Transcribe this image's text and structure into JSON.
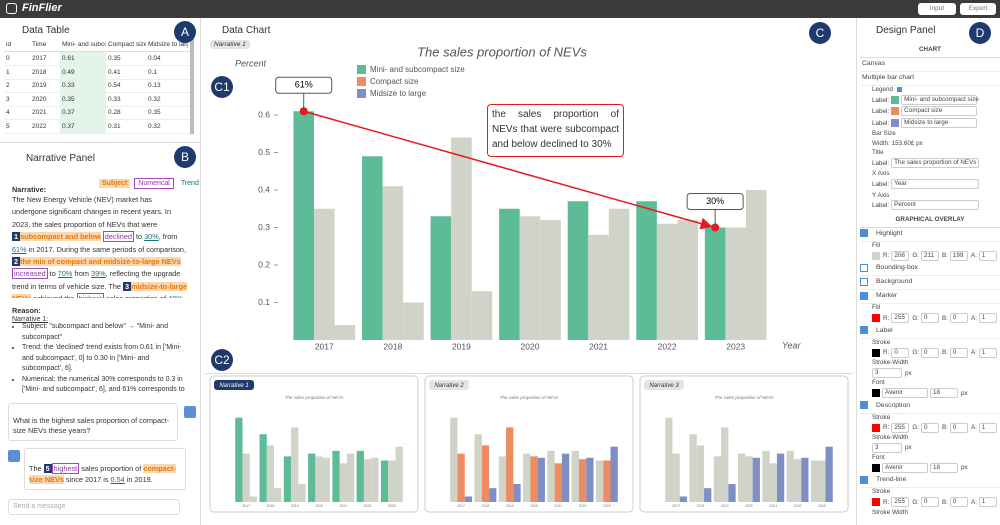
{
  "top_bar": {
    "logo": "FinFlier",
    "buttons": [
      "Input",
      "Export"
    ]
  },
  "callouts": [
    "A",
    "B",
    "C",
    "D",
    "C1",
    "C2"
  ],
  "data_table": {
    "title": "Data Table",
    "columns": [
      "id",
      "Time",
      "Mini- and subcompact size",
      "Compact size",
      "Midsize to large"
    ],
    "rows": [
      [
        "0",
        "2017",
        "0.61",
        "0.35",
        "0.04"
      ],
      [
        "1",
        "2018",
        "0.49",
        "0.41",
        "0.1"
      ],
      [
        "2",
        "2019",
        "0.33",
        "0.54",
        "0.13"
      ],
      [
        "3",
        "2020",
        "0.35",
        "0.33",
        "0.32"
      ],
      [
        "4",
        "2021",
        "0.37",
        "0.28",
        "0.35"
      ],
      [
        "5",
        "2022",
        "0.37",
        "0.31",
        "0.32"
      ]
    ]
  },
  "narrative_panel": {
    "title": "Narrative Panel",
    "tags": [
      {
        "text": "Subject",
        "style": "orange"
      },
      {
        "text": "Numerical",
        "style": "purple"
      },
      {
        "text": "Trend",
        "style": "teal"
      }
    ],
    "narrative_heading": "Narrative:",
    "narrative": [
      {
        "text": "The New Energy Vehicle (NEV) market has undergone significant changes in recent years. In 2023, the sales proportion of NEVs that were ",
        "style": "plain"
      },
      {
        "text": "1",
        "style": "badge"
      },
      {
        "text": "subcompact and below",
        "style": "orange"
      },
      {
        "text": " ",
        "style": "plain"
      },
      {
        "text": "declined",
        "style": "purple"
      },
      {
        "text": " to ",
        "style": "plain"
      },
      {
        "text": "30%",
        "style": "teal"
      },
      {
        "text": ", from ",
        "style": "plain"
      },
      {
        "text": "61%",
        "style": "teal"
      },
      {
        "text": " in 2017. During the same periods of comparison, ",
        "style": "plain"
      },
      {
        "text": "2",
        "style": "badge"
      },
      {
        "text": "the mix of compact and midsize-to-large NEVs",
        "style": "orange"
      },
      {
        "text": " ",
        "style": "plain"
      },
      {
        "text": "increased",
        "style": "purple"
      },
      {
        "text": " to ",
        "style": "plain"
      },
      {
        "text": "70%",
        "style": "teal"
      },
      {
        "text": " from ",
        "style": "plain"
      },
      {
        "text": "39%",
        "style": "teal"
      },
      {
        "text": ", reflecting the upgrade trend in terms of vehicle size. The ",
        "style": "plain"
      },
      {
        "text": "3",
        "style": "badge"
      },
      {
        "text": "midsize-to-large NEVs",
        "style": "orange"
      },
      {
        "text": " achieved the ",
        "style": "plain"
      },
      {
        "text": "highest",
        "style": "purple"
      },
      {
        "text": " sales proportion of ",
        "style": "plain"
      },
      {
        "text": "40%",
        "style": "teal"
      },
      {
        "text": " in 2023, indicating a significant shift in consumer preference towards to larger, more feature-rich",
        "style": "plain"
      }
    ],
    "reason_heading": "Reason:",
    "reason_subheading": "Narrative 1:",
    "reasons": [
      "Subject: \"subcompact and below\" → \"Mini- and subcompact\"",
      "Trend: the 'declined' trend exists from 0.61 in ['Mini- and subcompact', 0] to 0.30 in ['Mini- and subcompact', 6].",
      "Numerical: the numerical 30% corresponds to 0.3 in ['Mini- and subcompact', 6], and 61% corresponds to 0.61 in ['Mini- and subcompact', 0]"
    ],
    "question": "What is the highest sales proportion of compact-size NEVs these years?",
    "answer": [
      {
        "text": "The ",
        "style": "plain"
      },
      {
        "text": "5",
        "style": "badge"
      },
      {
        "text": "highest",
        "style": "purple"
      },
      {
        "text": " sales proportion of ",
        "style": "plain"
      },
      {
        "text": "compact-size NEVs",
        "style": "orange"
      },
      {
        "text": " since 2017 is ",
        "style": "plain"
      },
      {
        "text": "0.54",
        "style": "teal"
      },
      {
        "text": " in 2019.",
        "style": "plain"
      }
    ],
    "input_placeholder": "Send a message"
  },
  "chart_panel": {
    "title": "Data Chart",
    "narrative_tag": "Narrative 1",
    "thumbnails": [
      {
        "label": "Narrative 1",
        "highlight": [
          0
        ]
      },
      {
        "label": "Narrative 2",
        "highlight": [
          1,
          2
        ]
      },
      {
        "label": "Narrative 3",
        "highlight": [
          2
        ]
      }
    ]
  },
  "chart_data": {
    "type": "bar",
    "title": "The sales proportion of NEVs",
    "x_label": "Year",
    "y_label": "Percent",
    "categories": [
      "2017",
      "2018",
      "2019",
      "2020",
      "2021",
      "2022",
      "2023"
    ],
    "series": [
      {
        "name": "Mini- and subcompact size",
        "color": "#5dbb97",
        "values": [
          0.61,
          0.49,
          0.33,
          0.35,
          0.37,
          0.37,
          0.3
        ]
      },
      {
        "name": "Compact size",
        "color": "#ef8b60",
        "values": [
          0.35,
          0.41,
          0.54,
          0.33,
          0.28,
          0.31,
          0.3
        ]
      },
      {
        "name": "Midsize to large",
        "color": "#7f8fc6",
        "values": [
          0.04,
          0.1,
          0.13,
          0.32,
          0.35,
          0.32,
          0.4
        ]
      }
    ],
    "ylim": [
      0,
      0.68
    ],
    "yticks": [
      0.1,
      0.2,
      0.3,
      0.4,
      0.5,
      0.6
    ],
    "highlight": {
      "series": [
        0
      ],
      "fill": "#d0d3c7"
    },
    "annotations": {
      "labels": [
        {
          "text": "61%",
          "series": 0,
          "index": 0
        },
        {
          "text": "30%",
          "series": 0,
          "index": 6
        }
      ],
      "description": "the sales proportion of NEVs that were subcompact and below declined to 30%",
      "trend_line": {
        "from": [
          0,
          0
        ],
        "to": [
          0,
          6
        ],
        "color": "#e8191e"
      }
    }
  },
  "design_panel": {
    "title": "Design Panel",
    "channel_labels": [
      "R:",
      "G:",
      "B:",
      "A:"
    ],
    "rows": [
      {
        "kind": "section",
        "text": "CHART"
      },
      {
        "kind": "item",
        "text": "Canvas"
      },
      {
        "kind": "item",
        "text": "Multiple bar chart"
      },
      {
        "kind": "label",
        "text": "Legend",
        "checked": true
      },
      {
        "kind": "input",
        "label": "Label:",
        "color": "#5dbb97",
        "value": "Mini- and subcompact size"
      },
      {
        "kind": "input",
        "label": "Label:",
        "color": "#ef8b60",
        "value": "Compact size"
      },
      {
        "kind": "input",
        "label": "Label:",
        "color": "#7f8fc6",
        "value": "Midsize to large"
      },
      {
        "kind": "label",
        "text": "Bar Size"
      },
      {
        "kind": "label",
        "text": "Width: 153.60£ px"
      },
      {
        "kind": "label",
        "text": "Title"
      },
      {
        "kind": "input",
        "label": "Label:",
        "value": "The sales proportion of NEVs"
      },
      {
        "kind": "label",
        "text": "X Axis"
      },
      {
        "kind": "input",
        "label": "Label:",
        "value": "Year"
      },
      {
        "kind": "label",
        "text": "Y Axis"
      },
      {
        "kind": "input",
        "label": "Label:",
        "value": "Percent"
      },
      {
        "kind": "section",
        "text": "GRAPHICAL OVERLAY"
      },
      {
        "kind": "item",
        "text": "Highlight",
        "checked": true
      },
      {
        "kind": "label",
        "text": "Fill"
      },
      {
        "kind": "rgba",
        "color": "#d0d3c7",
        "values": [
          "208",
          "211",
          "199",
          "1"
        ]
      },
      {
        "kind": "item",
        "text": "Bounding-box",
        "checked": false
      },
      {
        "kind": "item",
        "text": "Background",
        "checked": false
      },
      {
        "kind": "item",
        "text": "Marker",
        "checked": true
      },
      {
        "kind": "label",
        "text": "Fill"
      },
      {
        "kind": "rgba",
        "color": "#ff0000",
        "values": [
          "255",
          "0",
          "0",
          "1"
        ]
      },
      {
        "kind": "item",
        "text": "Label",
        "checked": true
      },
      {
        "kind": "label",
        "text": "Stroke"
      },
      {
        "kind": "rgba",
        "color": "#000000",
        "values": [
          "0",
          "0",
          "0",
          "1"
        ]
      },
      {
        "kind": "label",
        "text": "Stroke-Width"
      },
      {
        "kind": "px",
        "value": "3",
        "unit": "px"
      },
      {
        "kind": "label",
        "text": "Font"
      },
      {
        "kind": "font",
        "color": "#000000",
        "font": "Avenir",
        "size": "18",
        "unit": "px"
      },
      {
        "kind": "item",
        "text": "Description",
        "checked": true
      },
      {
        "kind": "label",
        "text": "Stroke"
      },
      {
        "kind": "rgba",
        "color": "#ff0000",
        "values": [
          "255",
          "0",
          "0",
          "1"
        ]
      },
      {
        "kind": "label",
        "text": "Stroke-Width"
      },
      {
        "kind": "px",
        "value": "3",
        "unit": "px"
      },
      {
        "kind": "label",
        "text": "Font"
      },
      {
        "kind": "font",
        "color": "#000000",
        "font": "Avenir",
        "size": "18",
        "unit": "px"
      },
      {
        "kind": "item",
        "text": "Trend-line",
        "checked": true
      },
      {
        "kind": "label",
        "text": "Stroke"
      },
      {
        "kind": "rgba",
        "color": "#ff0000",
        "values": [
          "255",
          "0",
          "0",
          "1"
        ]
      },
      {
        "kind": "label",
        "text": "Stroke Width"
      }
    ]
  }
}
